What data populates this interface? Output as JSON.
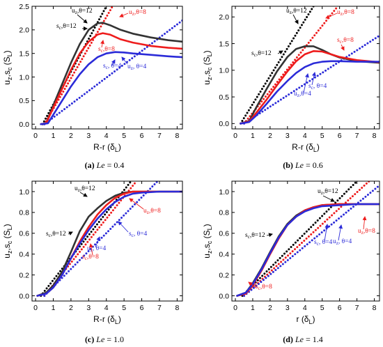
{
  "figure": {
    "panels": [
      {
        "caption": {
          "letter": "(a)",
          "var": "Le",
          "rest": " = 0.4"
        },
        "xlabel": {
          "main": "R-r (δ",
          "sub": "L",
          "close": ")"
        },
        "ylabel": {
          "u": "u",
          "usub": "z",
          "sep": ",",
          "s": "s",
          "ssub": "c",
          "unit": " (S",
          "unitsub": "L",
          "close": ")"
        },
        "annotations": [
          {
            "base": "u",
            "sub": "z",
            "rest": ",θ=12",
            "color": "#000000"
          },
          {
            "base": "s",
            "sub": "c",
            "rest": ",θ=12",
            "color": "#000000"
          },
          {
            "base": "u",
            "sub": "z",
            "rest": ",θ=8",
            "color": "#ee1c1c"
          },
          {
            "base": "s",
            "sub": "c",
            "rest": ",θ=8",
            "color": "#ee1c1c"
          },
          {
            "base": "u",
            "sub": "z",
            "rest": ", θ=4",
            "color": "#2b2bd8"
          },
          {
            "base": "s",
            "sub": "c",
            "rest": ", θ=4",
            "color": "#2b2bd8"
          }
        ]
      },
      {
        "caption": {
          "letter": "(b)",
          "var": "Le",
          "rest": " = 0.6"
        },
        "xlabel": {
          "main": "R-r (δ",
          "sub": "L",
          "close": ")"
        },
        "ylabel": {
          "u": "u",
          "usub": "z",
          "sep": ",",
          "s": "s",
          "ssub": "c",
          "unit": " (S",
          "unitsub": "L",
          "close": ")"
        },
        "annotations": [
          {
            "base": "u",
            "sub": "z",
            "rest": ",θ=12",
            "color": "#000000"
          },
          {
            "base": "s",
            "sub": "c",
            "rest": ",θ=12",
            "color": "#000000"
          },
          {
            "base": "u",
            "sub": "z",
            "rest": ",θ=8",
            "color": "#ee1c1c"
          },
          {
            "base": "s",
            "sub": "c",
            "rest": ",θ=8",
            "color": "#ee1c1c"
          },
          {
            "base": "s",
            "sub": "c",
            "rest": ", θ=4",
            "color": "#2b2bd8"
          },
          {
            "base": "u",
            "sub": "z",
            "rest": ",θ=4",
            "color": "#2b2bd8"
          }
        ]
      },
      {
        "caption": {
          "letter": "(c)",
          "var": "Le",
          "rest": " = 1.0"
        },
        "xlabel": {
          "main": "R-r (δ",
          "sub": "L",
          "close": ")"
        },
        "ylabel": {
          "u": "u",
          "usub": "z",
          "sep": ",",
          "s": "s",
          "ssub": "c",
          "unit": " (S",
          "unitsub": "L",
          "close": ")"
        },
        "annotations": [
          {
            "base": "u",
            "sub": "z",
            "rest": ",θ=12",
            "color": "#000000"
          },
          {
            "base": "u",
            "sub": "z",
            "rest": ",θ=8",
            "color": "#ee1c1c"
          },
          {
            "base": "s",
            "sub": "c",
            "rest": ",θ=12",
            "color": "#000000"
          },
          {
            "base": "s",
            "sub": "c",
            "rest": ", θ=4",
            "color": "#2b2bd8"
          },
          {
            "base": "u",
            "sub": "z",
            "rest": ", θ=4",
            "color": "#2b2bd8"
          },
          {
            "base": "s",
            "sub": "c",
            "rest": ",θ=8",
            "color": "#ee1c1c"
          }
        ]
      },
      {
        "caption": {
          "letter": "(d)",
          "var": "Le",
          "rest": " = 1.4"
        },
        "xlabel": {
          "main": "r (δ",
          "sub": "L",
          "close": ")"
        },
        "ylabel": {
          "u": "u",
          "usub": "z",
          "sep": ",",
          "s": "s",
          "ssub": "c",
          "unit": " (S",
          "unitsub": "L",
          "close": ")"
        },
        "annotations": [
          {
            "base": "u",
            "sub": "z",
            "rest": ",θ=12",
            "color": "#000000"
          },
          {
            "base": "s",
            "sub": "c",
            "rest": ",θ=12",
            "color": "#000000"
          },
          {
            "base": "s",
            "sub": "c",
            "rest": ", θ=4",
            "color": "#2b2bd8"
          },
          {
            "base": "u",
            "sub": "z",
            "rest": ", θ=4",
            "color": "#2b2bd8"
          },
          {
            "base": "u",
            "sub": "z",
            "rest": ",θ=8",
            "color": "#ee1c1c"
          },
          {
            "base": "s",
            "sub": "c",
            "rest": ",θ=8",
            "color": "#ee1c1c"
          }
        ]
      }
    ]
  },
  "chart_data": [
    {
      "type": "line",
      "xlim": [
        -0.2,
        8.3
      ],
      "ylim": [
        -0.1,
        2.5
      ],
      "xticks": [
        0,
        1,
        2,
        3,
        4,
        5,
        6,
        7,
        8
      ],
      "yticks": [
        0.0,
        0.5,
        1.0,
        1.5,
        2.0,
        2.5
      ],
      "ytick_labels": [
        "0.0",
        "0.5",
        "1.0",
        "1.5",
        "2.0",
        "2.5"
      ],
      "series": [
        {
          "color": "#000000",
          "style": "dotted",
          "x": [
            0.4,
            4.0
          ],
          "y": [
            0.0,
            2.5
          ]
        },
        {
          "color": "#ee1c1c",
          "style": "dotted",
          "x": [
            0.5,
            4.35
          ],
          "y": [
            0.0,
            2.5
          ]
        },
        {
          "color": "#2b2bd8",
          "style": "dotted",
          "x": [
            0.5,
            8.3
          ],
          "y": [
            0.0,
            2.2
          ]
        },
        {
          "color": "#333333",
          "style": "solid",
          "x": [
            0.3,
            0.6,
            1.0,
            1.5,
            2.0,
            2.5,
            3.0,
            3.5,
            3.8,
            4.2,
            4.8,
            5.5,
            6.5,
            7.5,
            8.3
          ],
          "y": [
            0.0,
            0.02,
            0.4,
            0.85,
            1.3,
            1.7,
            2.0,
            2.14,
            2.15,
            2.1,
            2.0,
            1.92,
            1.84,
            1.78,
            1.75
          ]
        },
        {
          "color": "#ee1c1c",
          "style": "solid",
          "x": [
            0.3,
            0.6,
            1.0,
            1.5,
            2.0,
            2.5,
            3.0,
            3.5,
            3.8,
            4.2,
            4.8,
            5.5,
            6.5,
            7.5,
            8.3
          ],
          "y": [
            0.0,
            0.02,
            0.35,
            0.75,
            1.15,
            1.5,
            1.75,
            1.9,
            1.93,
            1.9,
            1.8,
            1.73,
            1.66,
            1.62,
            1.6
          ]
        },
        {
          "color": "#2b2bd8",
          "style": "solid",
          "x": [
            0.3,
            0.7,
            1.0,
            1.5,
            2.0,
            2.5,
            3.0,
            3.5,
            4.0,
            4.5,
            5.0,
            5.5,
            6.5,
            7.5,
            8.3
          ],
          "y": [
            0.0,
            0.02,
            0.2,
            0.5,
            0.8,
            1.06,
            1.27,
            1.42,
            1.5,
            1.53,
            1.52,
            1.5,
            1.47,
            1.44,
            1.42
          ]
        }
      ]
    },
    {
      "type": "line",
      "xlim": [
        -0.2,
        8.3
      ],
      "ylim": [
        -0.1,
        2.2
      ],
      "xticks": [
        0,
        1,
        2,
        3,
        4,
        5,
        6,
        7,
        8
      ],
      "yticks": [
        0.0,
        0.5,
        1.0,
        1.5,
        2.0
      ],
      "ytick_labels": [
        "0.0",
        "0.5",
        "1.0",
        "1.5",
        "2.0"
      ],
      "series": [
        {
          "color": "#000000",
          "style": "dotted",
          "x": [
            0.3,
            4.5
          ],
          "y": [
            0.0,
            2.2
          ]
        },
        {
          "color": "#ee1c1c",
          "style": "dotted",
          "x": [
            0.5,
            5.9
          ],
          "y": [
            0.0,
            2.2
          ]
        },
        {
          "color": "#2b2bd8",
          "style": "dotted",
          "x": [
            0.5,
            8.3
          ],
          "y": [
            0.0,
            1.65
          ]
        },
        {
          "color": "#333333",
          "style": "solid",
          "x": [
            0.3,
            0.8,
            1.2,
            1.8,
            2.4,
            3.0,
            3.5,
            4.0,
            4.5,
            5.0,
            5.5,
            6.0,
            7.0,
            8.3
          ],
          "y": [
            0.0,
            0.05,
            0.3,
            0.65,
            0.98,
            1.25,
            1.4,
            1.45,
            1.45,
            1.38,
            1.3,
            1.24,
            1.17,
            1.14
          ]
        },
        {
          "color": "#ee1c1c",
          "style": "solid",
          "x": [
            0.3,
            0.8,
            1.2,
            1.8,
            2.4,
            3.0,
            3.5,
            4.0,
            4.5,
            5.0,
            5.5,
            6.0,
            7.0,
            8.3
          ],
          "y": [
            0.0,
            0.04,
            0.2,
            0.45,
            0.72,
            0.98,
            1.17,
            1.3,
            1.36,
            1.35,
            1.3,
            1.25,
            1.19,
            1.15
          ]
        },
        {
          "color": "#2b2bd8",
          "style": "solid",
          "x": [
            0.3,
            0.8,
            1.2,
            1.8,
            2.4,
            3.0,
            3.5,
            4.0,
            4.5,
            5.0,
            5.5,
            6.0,
            7.0,
            8.3
          ],
          "y": [
            0.0,
            0.03,
            0.15,
            0.37,
            0.6,
            0.8,
            0.95,
            1.06,
            1.13,
            1.16,
            1.17,
            1.17,
            1.16,
            1.16
          ]
        }
      ]
    },
    {
      "type": "line",
      "xlim": [
        -0.2,
        8.3
      ],
      "ylim": [
        -0.05,
        1.1
      ],
      "xticks": [
        0,
        1,
        2,
        3,
        4,
        5,
        6,
        7,
        8
      ],
      "yticks": [
        0.0,
        0.2,
        0.4,
        0.6,
        0.8,
        1.0
      ],
      "ytick_labels": [
        "0.0",
        "0.2",
        "0.4",
        "0.6",
        "0.8",
        "1.0"
      ],
      "series": [
        {
          "color": "#000000",
          "style": "dotted",
          "x": [
            0.3,
            5.4
          ],
          "y": [
            0.0,
            1.1
          ]
        },
        {
          "color": "#ee1c1c",
          "style": "dotted",
          "x": [
            0.5,
            5.7
          ],
          "y": [
            0.0,
            1.1
          ]
        },
        {
          "color": "#2b2bd8",
          "style": "dotted",
          "x": [
            0.5,
            6.9
          ],
          "y": [
            0.0,
            1.1
          ]
        },
        {
          "color": "#333333",
          "style": "solid",
          "x": [
            0.1,
            0.6,
            1.0,
            1.5,
            2.0,
            2.5,
            3.0,
            3.5,
            4.0,
            4.5,
            5.0,
            5.5,
            6.0,
            7.0,
            8.3
          ],
          "y": [
            0.0,
            0.03,
            0.1,
            0.23,
            0.42,
            0.62,
            0.76,
            0.84,
            0.91,
            0.96,
            0.99,
            1.0,
            1.0,
            1.0,
            1.0
          ]
        },
        {
          "color": "#ee1c1c",
          "style": "solid",
          "x": [
            0.1,
            0.6,
            1.0,
            1.5,
            2.0,
            2.5,
            3.0,
            3.5,
            4.0,
            4.5,
            5.0,
            5.5,
            6.0,
            7.0,
            8.3
          ],
          "y": [
            0.0,
            0.02,
            0.08,
            0.2,
            0.36,
            0.52,
            0.66,
            0.78,
            0.87,
            0.94,
            0.98,
            1.0,
            1.0,
            1.0,
            1.0
          ]
        },
        {
          "color": "#2b2bd8",
          "style": "solid",
          "x": [
            0.1,
            0.6,
            1.0,
            1.5,
            2.0,
            2.5,
            3.0,
            3.5,
            4.0,
            4.5,
            5.0,
            5.5,
            6.0,
            7.0,
            8.3
          ],
          "y": [
            0.0,
            0.02,
            0.08,
            0.2,
            0.36,
            0.5,
            0.63,
            0.74,
            0.83,
            0.9,
            0.95,
            0.98,
            0.99,
            1.0,
            1.0
          ]
        }
      ]
    },
    {
      "type": "line",
      "xlim": [
        -0.2,
        8.3
      ],
      "ylim": [
        -0.05,
        1.1
      ],
      "xticks": [
        0,
        1,
        2,
        3,
        4,
        5,
        6,
        7,
        8
      ],
      "yticks": [
        0.0,
        0.2,
        0.4,
        0.6,
        0.8,
        1.0
      ],
      "ytick_labels": [
        "0.0",
        "0.2",
        "0.4",
        "0.6",
        "0.8",
        "1.0"
      ],
      "series": [
        {
          "color": "#000000",
          "style": "dotted",
          "x": [
            0.4,
            7.0
          ],
          "y": [
            0.0,
            1.1
          ]
        },
        {
          "color": "#ee1c1c",
          "style": "dotted",
          "x": [
            0.5,
            7.7
          ],
          "y": [
            0.0,
            1.1
          ]
        },
        {
          "color": "#2b2bd8",
          "style": "dotted",
          "x": [
            0.5,
            8.3
          ],
          "y": [
            0.0,
            1.06
          ]
        },
        {
          "color": "#333333",
          "style": "solid",
          "x": [
            0.1,
            0.6,
            1.0,
            1.5,
            2.0,
            2.5,
            3.0,
            3.5,
            4.0,
            4.5,
            5.0,
            6.0,
            7.0,
            8.3
          ],
          "y": [
            0.0,
            0.03,
            0.12,
            0.26,
            0.42,
            0.57,
            0.69,
            0.77,
            0.82,
            0.85,
            0.87,
            0.88,
            0.88,
            0.88
          ]
        },
        {
          "color": "#ee1c1c",
          "style": "solid",
          "x": [
            0.1,
            0.6,
            1.0,
            1.5,
            2.0,
            2.5,
            3.0,
            3.5,
            4.0,
            4.5,
            5.0,
            6.0,
            7.0,
            8.3
          ],
          "y": [
            0.0,
            0.02,
            0.1,
            0.24,
            0.4,
            0.55,
            0.68,
            0.76,
            0.82,
            0.85,
            0.87,
            0.88,
            0.88,
            0.88
          ]
        },
        {
          "color": "#2b2bd8",
          "style": "solid",
          "x": [
            0.1,
            0.6,
            1.0,
            1.5,
            2.0,
            2.5,
            3.0,
            3.5,
            4.0,
            4.5,
            5.0,
            6.0,
            7.0,
            8.3
          ],
          "y": [
            0.0,
            0.03,
            0.11,
            0.25,
            0.41,
            0.56,
            0.68,
            0.76,
            0.81,
            0.84,
            0.86,
            0.87,
            0.88,
            0.88
          ]
        }
      ]
    }
  ]
}
